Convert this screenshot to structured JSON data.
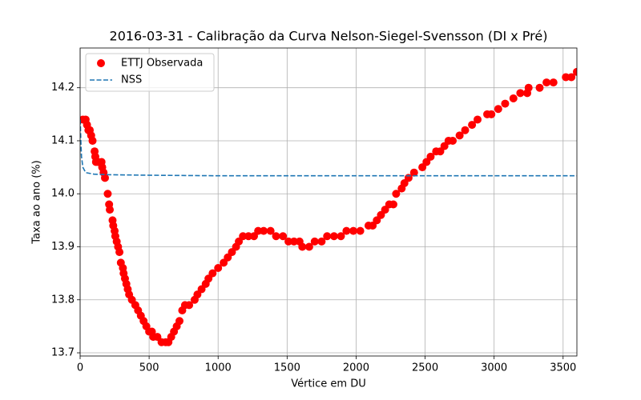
{
  "chart_data": {
    "type": "scatter",
    "title": "2016-03-31 - Calibração da Curva Nelson-Siegel-Svensson (DI x Pré)",
    "x_label": "Vértice em DU",
    "y_label": "Taxa ao ano (%)",
    "xlim": [
      0,
      3600
    ],
    "ylim": [
      13.694,
      14.275
    ],
    "xticks": [
      0,
      500,
      1000,
      1500,
      2000,
      2500,
      3000,
      3500
    ],
    "yticks": [
      13.7,
      13.8,
      13.9,
      {
        "value": 14.0,
        "label": "14.0"
      },
      14.1,
      14.2
    ],
    "grid": true,
    "legend": "upper left",
    "series": [
      {
        "name": "ETTJ Observada",
        "type": "scatter",
        "color": "#ff0000",
        "x": [
          20,
          40,
          50,
          60,
          70,
          80,
          90,
          105,
          110,
          115,
          130,
          155,
          160,
          170,
          180,
          200,
          210,
          215,
          235,
          240,
          250,
          255,
          265,
          275,
          285,
          295,
          310,
          315,
          325,
          335,
          345,
          355,
          375,
          400,
          420,
          440,
          460,
          480,
          500,
          520,
          530,
          560,
          590,
          620,
          640,
          660,
          680,
          700,
          720,
          740,
          760,
          790,
          830,
          850,
          880,
          910,
          930,
          960,
          1000,
          1040,
          1070,
          1100,
          1130,
          1150,
          1180,
          1220,
          1260,
          1290,
          1330,
          1380,
          1420,
          1470,
          1510,
          1550,
          1590,
          1610,
          1660,
          1700,
          1750,
          1790,
          1840,
          1890,
          1930,
          1980,
          2030,
          2090,
          2120,
          2150,
          2180,
          2210,
          2240,
          2270,
          2290,
          2330,
          2350,
          2380,
          2420,
          2480,
          2510,
          2540,
          2580,
          2610,
          2640,
          2670,
          2700,
          2750,
          2790,
          2840,
          2880,
          2950,
          2980,
          3030,
          3080,
          3140,
          3190,
          3240,
          3250,
          3330,
          3380,
          3430,
          3520,
          3560,
          3600
        ],
        "values": [
          14.14,
          14.14,
          14.13,
          14.12,
          14.12,
          14.11,
          14.1,
          14.08,
          14.07,
          14.06,
          14.06,
          14.06,
          14.05,
          14.04,
          14.03,
          14.0,
          13.98,
          13.97,
          13.95,
          13.94,
          13.93,
          13.92,
          13.91,
          13.9,
          13.89,
          13.87,
          13.86,
          13.85,
          13.84,
          13.83,
          13.82,
          13.81,
          13.8,
          13.79,
          13.78,
          13.77,
          13.76,
          13.75,
          13.74,
          13.74,
          13.73,
          13.73,
          13.72,
          13.72,
          13.72,
          13.73,
          13.74,
          13.75,
          13.76,
          13.78,
          13.79,
          13.79,
          13.8,
          13.81,
          13.82,
          13.83,
          13.84,
          13.85,
          13.86,
          13.87,
          13.88,
          13.89,
          13.9,
          13.91,
          13.92,
          13.92,
          13.92,
          13.93,
          13.93,
          13.93,
          13.92,
          13.92,
          13.91,
          13.91,
          13.91,
          13.9,
          13.9,
          13.91,
          13.91,
          13.92,
          13.92,
          13.92,
          13.93,
          13.93,
          13.93,
          13.94,
          13.94,
          13.95,
          13.96,
          13.97,
          13.98,
          13.98,
          14.0,
          14.01,
          14.02,
          14.03,
          14.04,
          14.05,
          14.06,
          14.07,
          14.08,
          14.08,
          14.09,
          14.1,
          14.1,
          14.11,
          14.12,
          14.13,
          14.14,
          14.15,
          14.15,
          14.16,
          14.17,
          14.18,
          14.19,
          14.19,
          14.2,
          14.2,
          14.21,
          14.21,
          14.22,
          14.22,
          14.23
        ]
      },
      {
        "name": "NSS",
        "type": "line",
        "linestyle": "dashed",
        "color": "#1f77b4",
        "x": [
          1,
          5,
          10,
          20,
          40,
          100,
          200,
          500,
          1000,
          2000,
          3600
        ],
        "values": [
          14.14,
          14.1,
          14.07,
          14.05,
          14.04,
          14.037,
          14.036,
          14.035,
          14.034,
          14.034,
          14.034
        ]
      }
    ]
  }
}
